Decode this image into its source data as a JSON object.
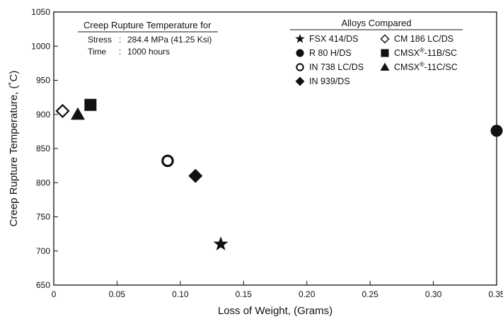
{
  "chart_data": {
    "type": "scatter",
    "title": "",
    "xlabel": "Loss of Weight, (Grams)",
    "ylabel": "Creep Rupture Temperature, (˚C)",
    "xlim": [
      0,
      0.35
    ],
    "ylim": [
      650,
      1050
    ],
    "x_ticks": [
      "0",
      "0.05",
      "0.10",
      "0.15",
      "0.20",
      "0.25",
      "0.30",
      "0.35"
    ],
    "y_ticks": [
      "650",
      "700",
      "750",
      "800",
      "850",
      "900",
      "950",
      "1000",
      "1050"
    ],
    "grid": false,
    "annotation": {
      "title": "Creep Rupture Temperature for",
      "stress_label": "Stress",
      "stress_value": "284.4 MPa (41.25 Ksi)",
      "time_label": "Time",
      "time_value": "1000 hours"
    },
    "legend": {
      "title": "Alloys Compared",
      "placement": "top-right"
    },
    "series": [
      {
        "name": "FSX 414/DS",
        "name_sup": "",
        "name_rest": "",
        "marker": "star",
        "legend_col": 0,
        "legend_row": 0,
        "x": 0.132,
        "y": 710
      },
      {
        "name": "R 80 H/DS",
        "name_sup": "",
        "name_rest": "",
        "marker": "circle",
        "legend_col": 0,
        "legend_row": 1,
        "x": 0.35,
        "y": 876
      },
      {
        "name": "IN 738 LC/DS",
        "name_sup": "",
        "name_rest": "",
        "marker": "ring",
        "legend_col": 0,
        "legend_row": 2,
        "x": 0.09,
        "y": 832
      },
      {
        "name": "IN 939/DS",
        "name_sup": "",
        "name_rest": "",
        "marker": "diamond",
        "legend_col": 0,
        "legend_row": 3,
        "x": 0.112,
        "y": 810
      },
      {
        "name": "CM 186 LC/DS",
        "name_sup": "",
        "name_rest": "",
        "marker": "diamond-open",
        "legend_col": 1,
        "legend_row": 0,
        "x": 0.007,
        "y": 905
      },
      {
        "name": "CMSX",
        "name_sup": "®",
        "name_rest": "-11B/SC",
        "marker": "square",
        "legend_col": 1,
        "legend_row": 1,
        "x": 0.029,
        "y": 914
      },
      {
        "name": "CMSX",
        "name_sup": "®",
        "name_rest": "-11C/SC",
        "marker": "triangle",
        "legend_col": 1,
        "legend_row": 2,
        "x": 0.019,
        "y": 900
      }
    ]
  }
}
